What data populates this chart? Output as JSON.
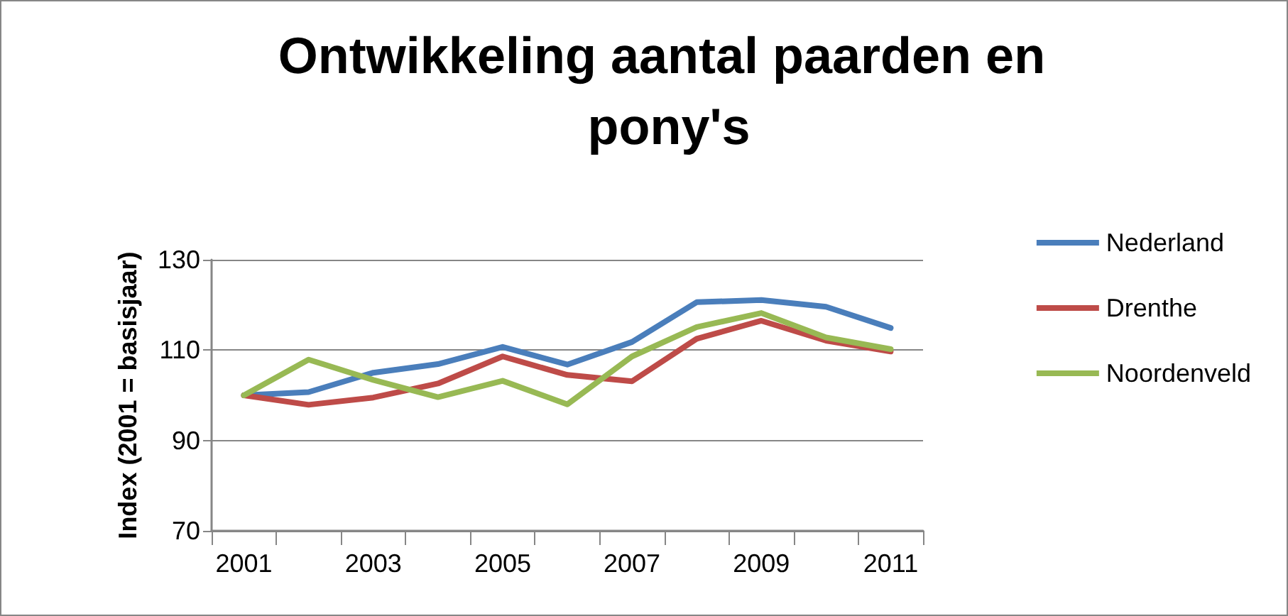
{
  "chart_data": {
    "type": "line",
    "title": "Ontwikkeling aantal paarden en pony's",
    "ylabel": "Index (2001 = basisjaar)",
    "categories": [
      "2001",
      null,
      "2003",
      null,
      "2005",
      null,
      "2007",
      null,
      "2009",
      null,
      "2011"
    ],
    "series": [
      {
        "name": "Nederland",
        "color": "#4a7ebb",
        "values": [
          100,
          100.7,
          105,
          106.9,
          110.7,
          106.8,
          111.8,
          120.6,
          121.1,
          119.6,
          114.9
        ]
      },
      {
        "name": "Drenthe",
        "color": "#be4b48",
        "values": [
          100,
          97.9,
          99.5,
          102.6,
          108.6,
          104.5,
          103.1,
          112.5,
          116.5,
          112.1,
          109.7
        ]
      },
      {
        "name": "Noordenveld",
        "color": "#98b954",
        "values": [
          100,
          107.9,
          103.4,
          99.6,
          103.2,
          98,
          108.6,
          115.1,
          118.2,
          112.8,
          110.2
        ]
      }
    ],
    "ylim": [
      70,
      130
    ],
    "yticks": [
      70,
      90,
      110,
      130
    ],
    "grid": "y",
    "legend": "right",
    "marker": "none",
    "line_style": "solid"
  }
}
